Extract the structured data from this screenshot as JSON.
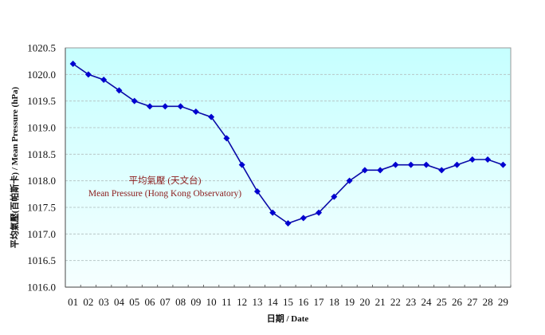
{
  "chart_data": {
    "type": "line",
    "title": "",
    "xlabel": "日期 / Date",
    "ylabel": "平均氣壓(百帕斯卡) / Mean Pressure (hPa)",
    "categories": [
      "01",
      "02",
      "03",
      "04",
      "05",
      "06",
      "07",
      "08",
      "09",
      "10",
      "11",
      "12",
      "13",
      "14",
      "15",
      "16",
      "17",
      "18",
      "19",
      "20",
      "21",
      "22",
      "23",
      "24",
      "25",
      "26",
      "27",
      "28",
      "29"
    ],
    "series": [
      {
        "name": "Mean Pressure (Hong Kong Observatory)",
        "values": [
          1020.2,
          1020.0,
          1019.9,
          1019.7,
          1019.5,
          1019.4,
          1019.4,
          1019.4,
          1019.3,
          1019.2,
          1018.8,
          1018.3,
          1017.8,
          1017.4,
          1017.2,
          1017.3,
          1017.4,
          1017.7,
          1018.0,
          1018.2,
          1018.2,
          1018.3,
          1018.3,
          1018.3,
          1018.2,
          1018.3,
          1018.4,
          1018.4,
          1018.3
        ]
      }
    ],
    "ylim": [
      1016.0,
      1020.5
    ],
    "yticks": [
      "1016.0",
      "1016.5",
      "1017.0",
      "1017.5",
      "1018.0",
      "1018.5",
      "1019.0",
      "1019.5",
      "1020.0",
      "1020.5"
    ],
    "grid": true,
    "legend": "inline annotation",
    "annotations": [
      {
        "text": "平均氣壓 (天文台)",
        "x_approx": "day 04-05",
        "y_approx": 1018.0
      },
      {
        "text": "Mean Pressure (Hong Kong Observatory)",
        "x_approx": "day 01-10",
        "y_approx": 1017.8
      }
    ]
  },
  "labels": {
    "x_axis_title": "日期 / Date",
    "y_axis_title": "平均氣壓(百帕斯卡) / Mean Pressure (hPa)",
    "annotation_zh": "平均氣壓 (天文台)",
    "annotation_en": "Mean Pressure (Hong Kong Observatory)"
  },
  "colors": {
    "line": "#0a0aa8",
    "marker": "#0000d0",
    "annotation": "#8b1a1a",
    "plot_bg_top": "#c6ffff",
    "plot_bg_bottom": "#f6ffff",
    "grid": "#b8c8c8",
    "axis": "#666666"
  }
}
